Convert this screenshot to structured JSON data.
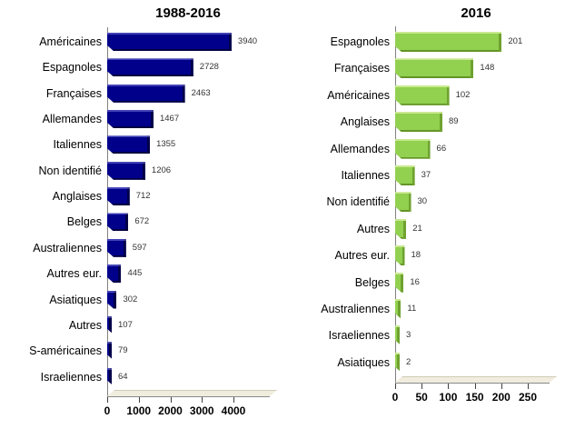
{
  "page": {
    "background": "#ffffff"
  },
  "chart_data": [
    {
      "type": "bar",
      "orientation": "horizontal",
      "title": "1988-2016",
      "bar_color": "#00008B",
      "categories": [
        "Américaines",
        "Espagnoles",
        "Françaises",
        "Allemandes",
        "Italiennes",
        "Non identifié",
        "Anglaises",
        "Belges",
        "Australiennes",
        "Autres eur.",
        "Asiatiques",
        "Autres",
        "S-américaines",
        "Israeliennes"
      ],
      "values": [
        3940,
        2728,
        2463,
        1467,
        1355,
        1206,
        712,
        672,
        597,
        445,
        302,
        107,
        79,
        64
      ],
      "value_labels": true,
      "xticks": [
        0,
        1000,
        2000,
        3000,
        4000
      ],
      "xlim": [
        0,
        4000
      ],
      "grid": false,
      "legend": false
    },
    {
      "type": "bar",
      "orientation": "horizontal",
      "title": "2016",
      "bar_color": "#92D050",
      "categories": [
        "Espagnoles",
        "Françaises",
        "Américaines",
        "Anglaises",
        "Allemandes",
        "Italiennes",
        "Non identifié",
        "Autres",
        "Autres eur.",
        "Belges",
        "Australiennes",
        "Israeliennes",
        "Asiatiques"
      ],
      "values": [
        201,
        148,
        102,
        89,
        66,
        37,
        30,
        21,
        18,
        16,
        11,
        3,
        2
      ],
      "value_labels": true,
      "xticks": [
        0,
        50,
        100,
        150,
        200,
        250
      ],
      "xlim": [
        0,
        250
      ],
      "grid": false,
      "legend": false
    }
  ]
}
